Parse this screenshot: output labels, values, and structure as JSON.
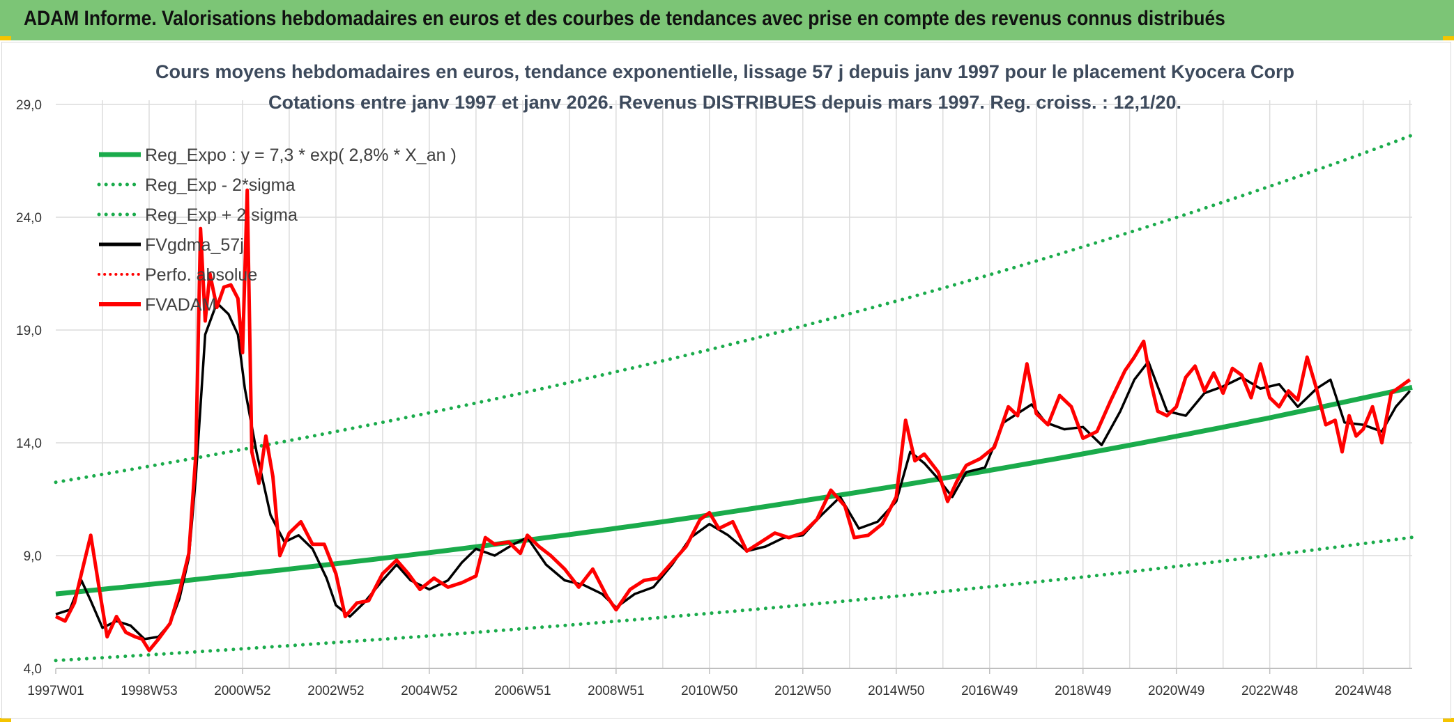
{
  "header": {
    "title": "ADAM Informe. Valorisations hebdomadaires en euros et des courbes de tendances avec prise en compte des revenus connus distribués"
  },
  "colors": {
    "header_bg": "#7cc576",
    "accent_yellow": "#f5c400",
    "reg_green": "#1aab4b",
    "fv_black": "#000000",
    "adam_red": "#ff0000"
  },
  "chart_data": {
    "type": "line",
    "title": "Cours moyens hebdomadaires en euros, tendance exponentielle, lissage 57 j depuis janv 1997 pour le placement Kyocera Corp",
    "subtitle": "Cotations entre janv 1997 et janv 2026. Revenus DISTRIBUES depuis mars 1997. Reg. croiss. : 12,1/20.",
    "xlabel": "",
    "ylabel": "",
    "xlim": [
      1997.0,
      2026.05
    ],
    "ylim": [
      4.0,
      29.0
    ],
    "y_ticks": [
      "4,0",
      "9,0",
      "14,0",
      "19,0",
      "24,0",
      "29,0"
    ],
    "x_ticks": [
      {
        "label": "1997W01",
        "x": 1997.0
      },
      {
        "label": "1998W53",
        "x": 1999.0
      },
      {
        "label": "2000W52",
        "x": 2001.0
      },
      {
        "label": "2002W52",
        "x": 2003.0
      },
      {
        "label": "2004W52",
        "x": 2005.0
      },
      {
        "label": "2006W51",
        "x": 2007.0
      },
      {
        "label": "2008W51",
        "x": 2009.0
      },
      {
        "label": "2010W50",
        "x": 2011.0
      },
      {
        "label": "2012W50",
        "x": 2013.0
      },
      {
        "label": "2014W50",
        "x": 2015.0
      },
      {
        "label": "2016W49",
        "x": 2017.0
      },
      {
        "label": "2018W49",
        "x": 2019.0
      },
      {
        "label": "2020W49",
        "x": 2021.0
      },
      {
        "label": "2022W48",
        "x": 2023.0
      },
      {
        "label": "2024W48",
        "x": 2025.0
      }
    ],
    "legend": {
      "placement": "top-left",
      "entries": [
        {
          "key": "reg",
          "label": "Reg_Expo : y = 7,3 * exp( 2,8% *  X_an )"
        },
        {
          "key": "minus",
          "label": "Reg_Exp - 2*sigma"
        },
        {
          "key": "plus",
          "label": "Reg_Exp + 2 sigma"
        },
        {
          "key": "fv",
          "label": "FVgdma_57j"
        },
        {
          "key": "perfo",
          "label": "Perfo. absolue"
        },
        {
          "key": "adam",
          "label": "FVADAM"
        }
      ]
    },
    "series": [
      {
        "name": "Reg_Expo : y = 7,3 * exp( 2,8% *  X_an )",
        "style": "solid-thick-green",
        "x": [
          1997,
          1999,
          2001,
          2003,
          2005,
          2007,
          2009,
          2011,
          2013,
          2015,
          2017,
          2019,
          2021,
          2023,
          2025,
          2026.05
        ],
        "values": [
          7.3,
          7.72,
          8.17,
          8.64,
          9.13,
          9.66,
          10.21,
          10.8,
          11.43,
          12.08,
          12.78,
          13.51,
          14.29,
          15.11,
          15.99,
          16.46
        ]
      },
      {
        "name": "Reg_Exp - 2*sigma",
        "style": "dotted-green",
        "x": [
          1997,
          1999,
          2001,
          2003,
          2005,
          2007,
          2009,
          2011,
          2013,
          2015,
          2017,
          2019,
          2021,
          2023,
          2025,
          2026.05
        ],
        "values": [
          4.35,
          4.6,
          4.87,
          5.15,
          5.44,
          5.76,
          6.09,
          6.44,
          6.81,
          7.2,
          7.62,
          8.05,
          8.52,
          9.01,
          9.53,
          9.81
        ]
      },
      {
        "name": "Reg_Exp + 2 sigma",
        "style": "dotted-green",
        "x": [
          1997,
          1999,
          2001,
          2003,
          2005,
          2007,
          2009,
          2011,
          2013,
          2015,
          2017,
          2019,
          2021,
          2023,
          2025,
          2026.05
        ],
        "values": [
          12.25,
          12.96,
          13.71,
          14.5,
          15.33,
          16.21,
          17.15,
          18.13,
          19.18,
          20.28,
          21.45,
          22.69,
          23.99,
          25.37,
          26.83,
          27.64
        ]
      },
      {
        "name": "FVgdma_57j",
        "style": "solid-black",
        "x": [
          1997.0,
          1997.3,
          1997.55,
          1997.75,
          1998.0,
          1998.3,
          1998.6,
          1998.9,
          1999.2,
          1999.45,
          1999.65,
          1999.85,
          2000.0,
          2000.2,
          2000.45,
          2000.7,
          2000.9,
          2001.05,
          2001.3,
          2001.6,
          2001.9,
          2002.2,
          2002.5,
          2002.8,
          2003.0,
          2003.3,
          2003.6,
          2004.0,
          2004.3,
          2004.6,
          2005.0,
          2005.4,
          2005.7,
          2006.0,
          2006.4,
          2006.8,
          2007.1,
          2007.5,
          2007.9,
          2008.3,
          2008.7,
          2009.0,
          2009.4,
          2009.8,
          2010.2,
          2010.6,
          2011.0,
          2011.4,
          2011.8,
          2012.2,
          2012.6,
          2013.0,
          2013.4,
          2013.8,
          2014.2,
          2014.6,
          2015.0,
          2015.3,
          2015.6,
          2015.9,
          2016.2,
          2016.5,
          2016.9,
          2017.3,
          2017.6,
          2017.9,
          2018.2,
          2018.6,
          2019.0,
          2019.4,
          2019.8,
          2020.1,
          2020.4,
          2020.8,
          2021.2,
          2021.6,
          2022.0,
          2022.4,
          2022.8,
          2023.2,
          2023.6,
          2024.0,
          2024.3,
          2024.6,
          2025.0,
          2025.4,
          2025.7,
          2026.0
        ],
        "values": [
          6.4,
          6.6,
          7.9,
          7.0,
          5.8,
          6.1,
          5.9,
          5.3,
          5.4,
          6.0,
          7.1,
          8.9,
          12.5,
          18.8,
          20.2,
          19.7,
          18.8,
          16.4,
          13.6,
          10.8,
          9.6,
          9.9,
          9.3,
          8.0,
          6.8,
          6.3,
          6.9,
          7.9,
          8.6,
          7.9,
          7.5,
          7.9,
          8.7,
          9.3,
          9.0,
          9.5,
          9.8,
          8.6,
          7.9,
          7.7,
          7.3,
          6.7,
          7.3,
          7.6,
          8.6,
          9.8,
          10.4,
          9.9,
          9.2,
          9.4,
          9.8,
          9.9,
          10.8,
          11.6,
          10.2,
          10.5,
          11.4,
          13.6,
          13.1,
          12.4,
          11.6,
          12.7,
          12.9,
          14.9,
          15.3,
          15.7,
          14.9,
          14.6,
          14.7,
          13.9,
          15.4,
          16.8,
          17.6,
          15.4,
          15.2,
          16.2,
          16.5,
          16.9,
          16.4,
          16.6,
          15.6,
          16.4,
          16.8,
          14.9,
          14.8,
          14.5,
          15.6,
          16.3
        ]
      },
      {
        "name": "FVADAM",
        "style": "solid-red",
        "x": [
          1997.0,
          1997.2,
          1997.4,
          1997.55,
          1997.75,
          1997.95,
          1998.1,
          1998.3,
          1998.5,
          1998.7,
          1998.85,
          1999.0,
          1999.2,
          1999.45,
          1999.65,
          1999.85,
          2000.0,
          2000.1,
          2000.2,
          2000.3,
          2000.45,
          2000.6,
          2000.75,
          2000.9,
          2001.0,
          2001.1,
          2001.2,
          2001.35,
          2001.5,
          2001.65,
          2001.8,
          2002.0,
          2002.25,
          2002.5,
          2002.75,
          2003.0,
          2003.2,
          2003.45,
          2003.7,
          2004.0,
          2004.3,
          2004.55,
          2004.8,
          2005.1,
          2005.4,
          2005.7,
          2006.0,
          2006.2,
          2006.4,
          2006.7,
          2006.95,
          2007.1,
          2007.35,
          2007.6,
          2007.9,
          2008.2,
          2008.5,
          2008.8,
          2009.0,
          2009.3,
          2009.6,
          2009.9,
          2010.2,
          2010.5,
          2010.8,
          2011.0,
          2011.2,
          2011.5,
          2011.8,
          2012.1,
          2012.4,
          2012.7,
          2013.0,
          2013.3,
          2013.6,
          2013.9,
          2014.1,
          2014.4,
          2014.7,
          2015.0,
          2015.2,
          2015.4,
          2015.6,
          2015.9,
          2016.1,
          2016.3,
          2016.5,
          2016.8,
          2017.1,
          2017.4,
          2017.6,
          2017.8,
          2018.0,
          2018.25,
          2018.5,
          2018.75,
          2019.0,
          2019.3,
          2019.6,
          2019.9,
          2020.1,
          2020.3,
          2020.45,
          2020.6,
          2020.8,
          2021.0,
          2021.2,
          2021.4,
          2021.6,
          2021.8,
          2022.0,
          2022.2,
          2022.4,
          2022.6,
          2022.8,
          2023.0,
          2023.2,
          2023.4,
          2023.6,
          2023.8,
          2024.0,
          2024.2,
          2024.4,
          2024.55,
          2024.7,
          2024.85,
          2025.0,
          2025.2,
          2025.4,
          2025.6,
          2025.8,
          2026.0
        ],
        "values": [
          6.3,
          6.1,
          6.9,
          8.2,
          9.9,
          7.3,
          5.4,
          6.3,
          5.6,
          5.4,
          5.3,
          4.8,
          5.3,
          6.0,
          7.4,
          9.1,
          13.5,
          23.5,
          19.4,
          21.5,
          20.0,
          20.9,
          21.0,
          20.4,
          18.0,
          25.2,
          13.6,
          12.2,
          14.3,
          12.5,
          9.0,
          10.0,
          10.5,
          9.5,
          9.5,
          8.2,
          6.3,
          6.9,
          7.0,
          8.2,
          8.8,
          8.2,
          7.5,
          8.0,
          7.6,
          7.8,
          8.1,
          9.8,
          9.5,
          9.6,
          9.1,
          9.9,
          9.4,
          9.0,
          8.4,
          7.6,
          8.4,
          7.2,
          6.6,
          7.5,
          7.9,
          8.0,
          8.7,
          9.4,
          10.6,
          10.9,
          10.2,
          10.5,
          9.2,
          9.6,
          10.0,
          9.8,
          10.0,
          10.6,
          11.9,
          11.2,
          9.8,
          9.9,
          10.4,
          11.6,
          15.0,
          13.2,
          13.5,
          12.7,
          11.4,
          12.3,
          13.0,
          13.3,
          13.8,
          15.6,
          15.2,
          17.5,
          15.3,
          14.8,
          16.1,
          15.6,
          14.2,
          14.5,
          15.9,
          17.2,
          17.8,
          18.5,
          16.7,
          15.4,
          15.2,
          15.6,
          16.9,
          17.4,
          16.3,
          17.1,
          16.2,
          17.3,
          17.0,
          16.0,
          17.5,
          16.0,
          15.6,
          16.3,
          15.9,
          17.8,
          16.4,
          14.8,
          15.0,
          13.6,
          15.2,
          14.3,
          14.6,
          15.6,
          14.0,
          16.2,
          16.5,
          16.8
        ]
      }
    ]
  }
}
